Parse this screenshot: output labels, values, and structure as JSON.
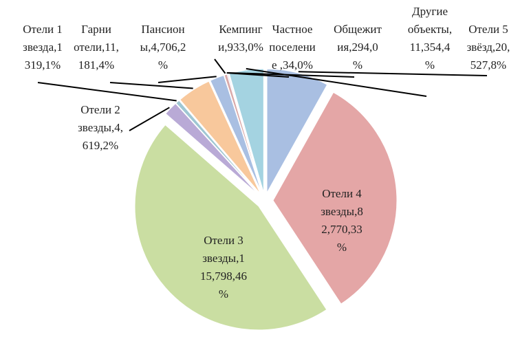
{
  "chart_data": {
    "type": "pie",
    "categories": [
      "Отели 5 звёзд",
      "Отели 4 звезды",
      "Отели 3 звезды",
      "Отели 2 звезды",
      "Отели 1 звезда",
      "Гарни отели",
      "Пансионы",
      "Кемпинги",
      "Частное поселение",
      "Общежития",
      "Другие объекты"
    ],
    "values": [
      20527,
      82770,
      115798,
      4619,
      1319,
      11181,
      4706,
      933,
      34,
      294,
      11354
    ],
    "value_labels": [
      "Отели 5\nзвёзд,20,\n527,8%",
      "Отели 4\nзвезды,8\n2,770,33\n%",
      "Отели 3\nзвезды,1\n15,798,46\n%",
      "Отели 2\nзвезды,4,\n619,2%",
      "Отели 1\nзвезда,1\n319,1%",
      "Гарни\nотели,11,\n181,4%",
      "Пансион\nы,4,706,2\n%",
      "Кемпинг\nи,933,0%",
      "Частное\nпоселени\nе ,34,0%",
      "Общежит\nия,294,0\n%",
      "Другие\nобъекты,\n11,354,4\n%"
    ],
    "colors": [
      "#a9bfe2",
      "#e4a6a6",
      "#cadea2",
      "#b9aad6",
      "#9fc7d3",
      "#f8c89c",
      "#a9bfe2",
      "#d9a9a9",
      "#c6d8a6",
      "#b9aad6",
      "#a4d3e1"
    ]
  }
}
